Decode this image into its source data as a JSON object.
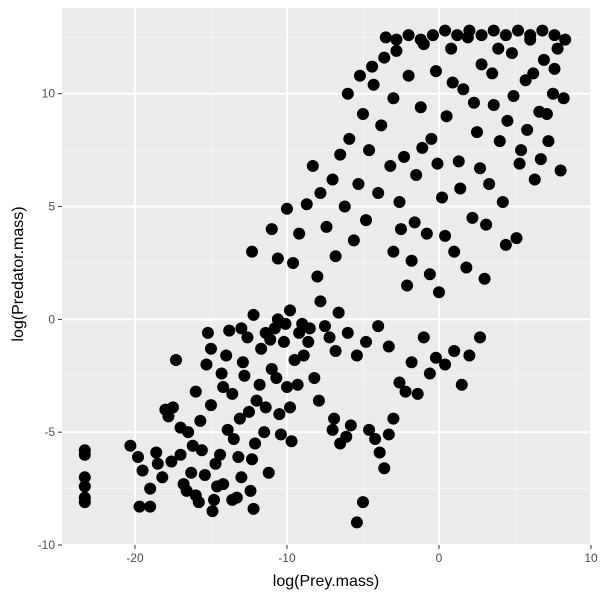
{
  "chart_data": {
    "type": "scatter",
    "title": "",
    "xlabel": "log(Prey.mass)",
    "ylabel": "log(Predator.mass)",
    "xlim": [
      -24.8,
      10
    ],
    "ylim": [
      -10,
      13.8
    ],
    "x_ticks": [
      -20,
      -10,
      0,
      10
    ],
    "x_tick_labels": [
      "-20",
      "-10",
      "0",
      "10"
    ],
    "y_ticks": [
      -10,
      -5,
      0,
      5,
      10
    ],
    "y_tick_labels": [
      "-10",
      "-5",
      "0",
      "5",
      "10"
    ],
    "grid": true,
    "legend": "none",
    "point_color": "#000000",
    "panel_background": "#ebebeb",
    "grid_major_color": "#ffffff",
    "grid_minor_color": "#f5f5f5",
    "series": [
      {
        "values": [
          [
            -23.3,
            -5.8
          ],
          [
            -23.3,
            -6.0
          ],
          [
            -23.3,
            -7.0
          ],
          [
            -23.3,
            -7.4
          ],
          [
            -23.3,
            -7.9
          ],
          [
            -23.3,
            -8.1
          ],
          [
            -20.3,
            -5.6
          ],
          [
            -19.8,
            -6.1
          ],
          [
            -19.5,
            -6.7
          ],
          [
            -19.7,
            -8.3
          ],
          [
            -19.0,
            -7.5
          ],
          [
            -19.0,
            -8.3
          ],
          [
            -18.6,
            -5.9
          ],
          [
            -18.5,
            -6.4
          ],
          [
            -18.2,
            -7.0
          ],
          [
            -17.8,
            -4.3
          ],
          [
            -17.5,
            -3.9
          ],
          [
            -17.3,
            -1.8
          ],
          [
            -17.0,
            -6.0
          ],
          [
            -16.8,
            -7.3
          ],
          [
            -16.5,
            -5.0
          ],
          [
            -16.3,
            -6.8
          ],
          [
            -16.0,
            -7.8
          ],
          [
            -15.7,
            -4.5
          ],
          [
            -15.3,
            -2.0
          ],
          [
            -15.2,
            -0.6
          ],
          [
            -15.0,
            -1.3
          ],
          [
            -14.9,
            -8.5
          ],
          [
            -14.6,
            -7.4
          ],
          [
            -14.4,
            -6.0
          ],
          [
            -14.2,
            -3.0
          ],
          [
            -14.0,
            -1.6
          ],
          [
            -13.8,
            -0.5
          ],
          [
            -13.5,
            -5.3
          ],
          [
            -13.3,
            -7.9
          ],
          [
            -13.1,
            -4.4
          ],
          [
            -12.8,
            -2.5
          ],
          [
            -12.6,
            -0.8
          ],
          [
            -12.3,
            -6.2
          ],
          [
            -12.2,
            -8.4
          ],
          [
            -12.0,
            -3.6
          ],
          [
            -11.7,
            -1.3
          ],
          [
            -11.5,
            -5.0
          ],
          [
            -11.2,
            -6.8
          ],
          [
            -11.0,
            -2.2
          ],
          [
            -10.8,
            -0.4
          ],
          [
            -10.5,
            -4.2
          ],
          [
            -10.2,
            -1.0
          ],
          [
            -10.0,
            -3.0
          ],
          [
            -9.7,
            -5.4
          ],
          [
            -9.5,
            -1.8
          ],
          [
            -9.2,
            -0.6
          ],
          [
            -12.3,
            3.0
          ],
          [
            -11.0,
            4.0
          ],
          [
            -10.6,
            2.7
          ],
          [
            -10.0,
            4.9
          ],
          [
            -9.6,
            2.5
          ],
          [
            -9.2,
            3.8
          ],
          [
            -8.7,
            5.1
          ],
          [
            -8.3,
            6.8
          ],
          [
            -8.0,
            1.9
          ],
          [
            -7.8,
            5.6
          ],
          [
            -7.4,
            4.1
          ],
          [
            -7.0,
            6.2
          ],
          [
            -6.8,
            2.8
          ],
          [
            -6.5,
            7.3
          ],
          [
            -6.2,
            5.0
          ],
          [
            -5.9,
            8.0
          ],
          [
            -5.6,
            3.5
          ],
          [
            -5.3,
            6.0
          ],
          [
            -5.0,
            9.1
          ],
          [
            -4.8,
            4.4
          ],
          [
            -4.6,
            7.5
          ],
          [
            -4.3,
            10.4
          ],
          [
            -4.0,
            5.6
          ],
          [
            -3.8,
            8.6
          ],
          [
            -3.5,
            12.5
          ],
          [
            -3.2,
            6.8
          ],
          [
            -3.0,
            9.8
          ],
          [
            -2.8,
            11.9
          ],
          [
            -2.5,
            4.0
          ],
          [
            -2.3,
            7.2
          ],
          [
            -2.0,
            10.8
          ],
          [
            -1.8,
            2.6
          ],
          [
            -1.5,
            6.4
          ],
          [
            -1.2,
            9.4
          ],
          [
            -1.0,
            12.2
          ],
          [
            -0.8,
            3.8
          ],
          [
            -0.5,
            8.0
          ],
          [
            -0.2,
            11.0
          ],
          [
            0.0,
            1.2
          ],
          [
            0.2,
            5.4
          ],
          [
            0.5,
            9.0
          ],
          [
            0.8,
            12.0
          ],
          [
            1.0,
            3.0
          ],
          [
            1.3,
            7.0
          ],
          [
            1.6,
            10.2
          ],
          [
            1.9,
            12.5
          ],
          [
            2.2,
            4.5
          ],
          [
            2.5,
            8.3
          ],
          [
            2.8,
            11.3
          ],
          [
            3.0,
            1.8
          ],
          [
            3.3,
            6.0
          ],
          [
            3.6,
            9.5
          ],
          [
            3.9,
            12.0
          ],
          [
            4.2,
            5.2
          ],
          [
            4.5,
            8.8
          ],
          [
            4.8,
            11.8
          ],
          [
            5.1,
            3.6
          ],
          [
            5.4,
            7.5
          ],
          [
            5.7,
            10.6
          ],
          [
            6.0,
            12.4
          ],
          [
            6.3,
            6.2
          ],
          [
            6.6,
            9.2
          ],
          [
            6.9,
            11.5
          ],
          [
            7.2,
            7.9
          ],
          [
            7.5,
            10.0
          ],
          [
            7.8,
            12.0
          ],
          [
            8.0,
            6.6
          ],
          [
            8.2,
            9.8
          ],
          [
            8.3,
            12.4
          ],
          [
            -7.9,
            -3.6
          ],
          [
            -7.0,
            -4.9
          ],
          [
            -6.9,
            -4.4
          ],
          [
            -6.5,
            -5.5
          ],
          [
            -6.1,
            -5.2
          ],
          [
            -5.8,
            -4.7
          ],
          [
            -5.4,
            -9.0
          ],
          [
            -5.0,
            -8.1
          ],
          [
            -4.6,
            -4.9
          ],
          [
            -4.2,
            -5.3
          ],
          [
            -3.9,
            -5.9
          ],
          [
            -3.6,
            -6.6
          ],
          [
            -3.3,
            -5.1
          ],
          [
            -3.0,
            -4.4
          ],
          [
            -2.6,
            -2.8
          ],
          [
            -2.2,
            -3.2
          ],
          [
            -1.8,
            -1.9
          ],
          [
            -1.4,
            -3.3
          ],
          [
            -1.0,
            -0.8
          ],
          [
            -0.6,
            -2.4
          ],
          [
            -0.2,
            -1.7
          ],
          [
            0.4,
            -2.0
          ],
          [
            1.0,
            -1.4
          ],
          [
            1.5,
            -2.9
          ],
          [
            2.0,
            -1.6
          ],
          [
            2.7,
            -0.8
          ],
          [
            -8.6,
            -1.0
          ],
          [
            -8.2,
            -2.6
          ],
          [
            -7.5,
            -0.3
          ],
          [
            -6.8,
            -1.4
          ],
          [
            -6.0,
            -0.6
          ],
          [
            -5.4,
            -1.6
          ],
          [
            -4.8,
            -1.0
          ],
          [
            -4.0,
            -0.3
          ],
          [
            -3.3,
            -1.2
          ],
          [
            -16.0,
            -3.2
          ],
          [
            -15.6,
            -5.8
          ],
          [
            -15.0,
            -3.8
          ],
          [
            -14.7,
            -6.4
          ],
          [
            -14.3,
            -2.4
          ],
          [
            -13.9,
            -4.9
          ],
          [
            -13.6,
            -3.3
          ],
          [
            -13.2,
            -6.1
          ],
          [
            -12.9,
            -1.9
          ],
          [
            -12.5,
            -4.1
          ],
          [
            -12.1,
            -5.5
          ],
          [
            -11.8,
            -2.9
          ],
          [
            -11.4,
            -3.9
          ],
          [
            -11.1,
            -0.9
          ],
          [
            -10.7,
            -2.6
          ],
          [
            -10.4,
            -5.1
          ],
          [
            -10.1,
            -0.2
          ],
          [
            -9.8,
            -3.9
          ],
          [
            -9.3,
            -2.9
          ],
          [
            -8.9,
            -1.6
          ],
          [
            -8.5,
            -0.4
          ],
          [
            -7.8,
            0.8
          ],
          [
            -7.2,
            -0.8
          ],
          [
            -6.6,
            0.3
          ],
          [
            -3.0,
            3.0
          ],
          [
            -2.6,
            5.2
          ],
          [
            -2.1,
            1.5
          ],
          [
            -1.6,
            4.3
          ],
          [
            -1.1,
            7.6
          ],
          [
            -0.6,
            2.0
          ],
          [
            -0.1,
            6.9
          ],
          [
            0.4,
            3.7
          ],
          [
            0.9,
            10.5
          ],
          [
            1.4,
            5.8
          ],
          [
            1.8,
            2.3
          ],
          [
            2.3,
            9.6
          ],
          [
            2.7,
            6.7
          ],
          [
            3.1,
            4.2
          ],
          [
            3.5,
            10.9
          ],
          [
            4.0,
            7.9
          ],
          [
            4.4,
            3.3
          ],
          [
            4.9,
            9.9
          ],
          [
            5.3,
            6.9
          ],
          [
            5.8,
            8.4
          ],
          [
            6.2,
            10.9
          ],
          [
            6.7,
            7.1
          ],
          [
            7.1,
            9.1
          ],
          [
            7.6,
            11.1
          ],
          [
            -6.0,
            10.0
          ],
          [
            -5.2,
            10.8
          ],
          [
            -4.4,
            11.2
          ],
          [
            -3.6,
            11.6
          ],
          [
            -2.8,
            12.4
          ],
          [
            -2.0,
            12.6
          ],
          [
            -1.2,
            12.4
          ],
          [
            -0.4,
            12.6
          ],
          [
            0.4,
            12.8
          ],
          [
            1.2,
            12.6
          ],
          [
            2.0,
            12.8
          ],
          [
            2.8,
            12.6
          ],
          [
            3.6,
            12.8
          ],
          [
            4.4,
            12.6
          ],
          [
            5.2,
            12.8
          ],
          [
            6.0,
            12.6
          ],
          [
            6.8,
            12.8
          ],
          [
            7.6,
            12.6
          ],
          [
            -13.0,
            -0.4
          ],
          [
            -12.2,
            0.2
          ],
          [
            -11.4,
            -0.6
          ],
          [
            -10.6,
            0.0
          ],
          [
            -9.8,
            0.4
          ],
          [
            -9.0,
            -0.2
          ],
          [
            -18.0,
            -4.0
          ],
          [
            -17.6,
            -6.3
          ],
          [
            -17.0,
            -4.8
          ],
          [
            -16.6,
            -7.6
          ],
          [
            -16.2,
            -5.6
          ],
          [
            -15.8,
            -8.1
          ],
          [
            -15.4,
            -6.9
          ],
          [
            -14.8,
            -8.0
          ],
          [
            -14.2,
            -7.3
          ],
          [
            -13.6,
            -8.0
          ],
          [
            -13.0,
            -7.0
          ],
          [
            -12.4,
            -7.6
          ]
        ]
      }
    ]
  }
}
